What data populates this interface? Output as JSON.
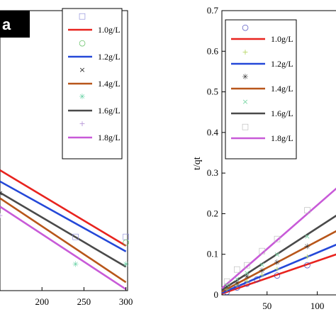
{
  "colors": {
    "1.0": "#e8231e",
    "1.2": "#2448d8",
    "1.4": "#b8561a",
    "1.6": "#4a4a4a",
    "1.8": "#c85ad8"
  },
  "chart_data": [
    {
      "type": "line",
      "panel_label": "a",
      "xlim": [
        150,
        302
      ],
      "ylim": [
        0,
        1
      ],
      "x_ticks": [
        200,
        250,
        300
      ],
      "x_tick_labels": [
        "200",
        "250",
        "300"
      ],
      "legend": {
        "placement": "top-right",
        "entries": [
          {
            "label": "1.0g/L",
            "marker_symbol": "□",
            "line_color_key": "1.0",
            "marker_color": "#8a8ad8"
          },
          {
            "label": "1.2g/L",
            "marker_symbol": "○",
            "line_color_key": "1.2",
            "marker_color": "#4fb84f"
          },
          {
            "label": "1.4g/L",
            "marker_symbol": "×",
            "line_color_key": "1.4",
            "marker_color": "#333333"
          },
          {
            "label": "1.6g/L",
            "marker_symbol": "✳",
            "line_color_key": "1.6",
            "marker_color": "#5fcf9f"
          },
          {
            "label": "1.8g/L",
            "marker_symbol": "+",
            "line_color_key": "1.8",
            "marker_color": "#b899d8"
          }
        ]
      },
      "series": [
        {
          "name": "1.0g/L",
          "color_key": "1.0",
          "fit": [
            [
              150,
              0.43
            ],
            [
              300,
              0.16
            ]
          ]
        },
        {
          "name": "1.2g/L",
          "color_key": "1.2",
          "fit": [
            [
              150,
              0.39
            ],
            [
              300,
              0.14
            ]
          ]
        },
        {
          "name": "1.4g/L",
          "color_key": "1.4",
          "fit": [
            [
              150,
              0.33
            ],
            [
              300,
              0.03
            ]
          ]
        },
        {
          "name": "1.6g/L",
          "color_key": "1.6",
          "fit": [
            [
              150,
              0.35
            ],
            [
              300,
              0.085
            ]
          ]
        },
        {
          "name": "1.8g/L",
          "color_key": "1.8",
          "fit": [
            [
              150,
              0.3
            ],
            [
              300,
              0.005
            ]
          ]
        }
      ],
      "points": [
        {
          "series": "1.0g/L",
          "x": 240,
          "y": 0.195
        },
        {
          "series": "1.0g/L",
          "x": 300,
          "y": 0.195
        },
        {
          "series": "1.2g/L",
          "x": 300,
          "y": 0.175
        },
        {
          "series": "1.6g/L",
          "x": 240,
          "y": 0.095
        },
        {
          "series": "1.6g/L",
          "x": 300,
          "y": 0.095
        },
        {
          "series": "1.8g/L",
          "x": 150,
          "y": 0.27
        },
        {
          "series": "1.4g/L",
          "x": 150,
          "y": 0.35
        }
      ]
    },
    {
      "type": "line",
      "xlim": [
        5,
        125
      ],
      "ylim": [
        0,
        0.7
      ],
      "ylabel": "t/qt",
      "y_ticks": [
        0,
        0.1,
        0.2,
        0.3,
        0.4,
        0.5,
        0.6,
        0.7
      ],
      "y_tick_labels": [
        "0",
        "0.1",
        "0.2",
        "0.3",
        "0.4",
        "0.5",
        "0.6",
        "0.7"
      ],
      "x_ticks": [
        50,
        100
      ],
      "x_tick_labels": [
        "50",
        "100"
      ],
      "legend": {
        "placement": "top-left",
        "entries": [
          {
            "label": "1.0g/L",
            "marker_symbol": "○",
            "line_color_key": "1.0",
            "marker_color": "#3a3ab8"
          },
          {
            "label": "1.2g/L",
            "marker_symbol": "+",
            "line_color_key": "1.2",
            "marker_color": "#b8d86a"
          },
          {
            "label": "1.4g/L",
            "marker_symbol": "✳",
            "line_color_key": "1.4",
            "marker_color": "#333333"
          },
          {
            "label": "1.6g/L",
            "marker_symbol": "×",
            "line_color_key": "1.6",
            "marker_color": "#7fd8a8"
          },
          {
            "label": "1.8g/L",
            "marker_symbol": "□",
            "line_color_key": "1.8",
            "marker_color": "#b8b8b8"
          }
        ]
      },
      "series": [
        {
          "name": "1.0g/L",
          "color_key": "1.0",
          "fit": [
            [
              5,
              0.003
            ],
            [
              125,
              0.105
            ]
          ]
        },
        {
          "name": "1.2g/L",
          "color_key": "1.2",
          "fit": [
            [
              5,
              0.005
            ],
            [
              125,
              0.13
            ]
          ]
        },
        {
          "name": "1.4g/L",
          "color_key": "1.4",
          "fit": [
            [
              5,
              0.008
            ],
            [
              125,
              0.165
            ]
          ]
        },
        {
          "name": "1.6g/L",
          "color_key": "1.6",
          "fit": [
            [
              5,
              0.012
            ],
            [
              125,
              0.205
            ]
          ]
        },
        {
          "name": "1.8g/L",
          "color_key": "1.8",
          "fit": [
            [
              5,
              0.016
            ],
            [
              125,
              0.275
            ]
          ]
        }
      ],
      "points": [
        {
          "series": "1.0g/L",
          "x": 10,
          "y": 0.01
        },
        {
          "series": "1.0g/L",
          "x": 20,
          "y": 0.02
        },
        {
          "series": "1.0g/L",
          "x": 30,
          "y": 0.03
        },
        {
          "series": "1.0g/L",
          "x": 40,
          "y": 0.04
        },
        {
          "series": "1.0g/L",
          "x": 60,
          "y": 0.05
        },
        {
          "series": "1.0g/L",
          "x": 90,
          "y": 0.075
        },
        {
          "series": "1.2g/L",
          "x": 10,
          "y": 0.015
        },
        {
          "series": "1.2g/L",
          "x": 20,
          "y": 0.025
        },
        {
          "series": "1.2g/L",
          "x": 30,
          "y": 0.035
        },
        {
          "series": "1.2g/L",
          "x": 45,
          "y": 0.05
        },
        {
          "series": "1.2g/L",
          "x": 60,
          "y": 0.065
        },
        {
          "series": "1.2g/L",
          "x": 90,
          "y": 0.095
        },
        {
          "series": "1.4g/L",
          "x": 10,
          "y": 0.02
        },
        {
          "series": "1.4g/L",
          "x": 20,
          "y": 0.03
        },
        {
          "series": "1.4g/L",
          "x": 30,
          "y": 0.045
        },
        {
          "series": "1.4g/L",
          "x": 45,
          "y": 0.06
        },
        {
          "series": "1.4g/L",
          "x": 60,
          "y": 0.08
        },
        {
          "series": "1.4g/L",
          "x": 90,
          "y": 0.12
        },
        {
          "series": "1.6g/L",
          "x": 10,
          "y": 0.025
        },
        {
          "series": "1.6g/L",
          "x": 20,
          "y": 0.04
        },
        {
          "series": "1.6g/L",
          "x": 30,
          "y": 0.055
        },
        {
          "series": "1.6g/L",
          "x": 45,
          "y": 0.075
        },
        {
          "series": "1.6g/L",
          "x": 60,
          "y": 0.1
        },
        {
          "series": "1.6g/L",
          "x": 90,
          "y": 0.145
        },
        {
          "series": "1.8g/L",
          "x": 10,
          "y": 0.035
        },
        {
          "series": "1.8g/L",
          "x": 20,
          "y": 0.065
        },
        {
          "series": "1.8g/L",
          "x": 30,
          "y": 0.075
        },
        {
          "series": "1.8g/L",
          "x": 45,
          "y": 0.11
        },
        {
          "series": "1.8g/L",
          "x": 60,
          "y": 0.14
        },
        {
          "series": "1.8g/L",
          "x": 90,
          "y": 0.21
        }
      ]
    }
  ]
}
